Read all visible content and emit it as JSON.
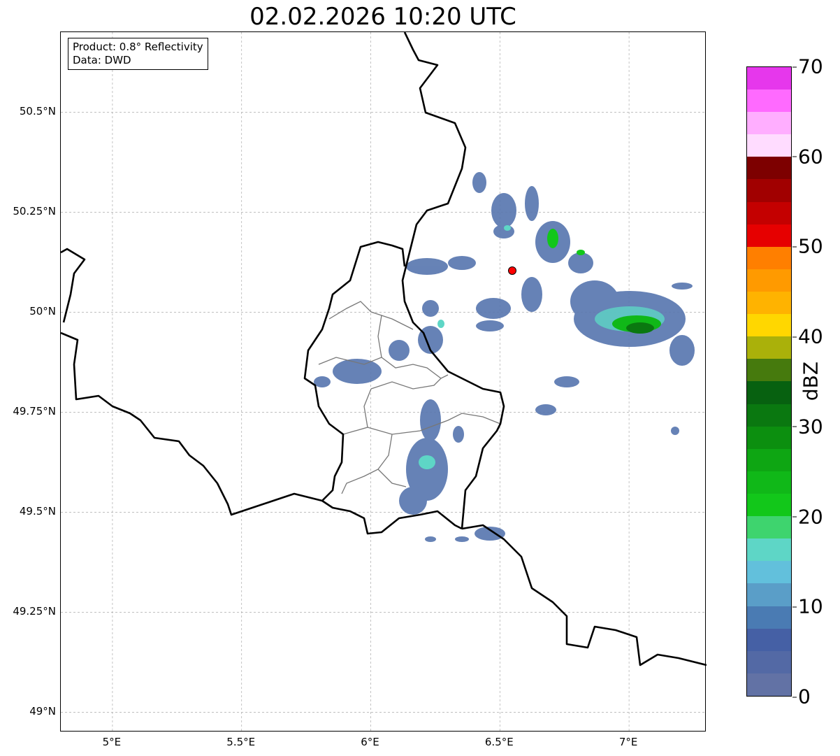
{
  "chart_data": {
    "type": "heatmap",
    "title": "02.02.2026 10:20 UTC",
    "xlim": [
      4.8,
      7.3
    ],
    "ylim": [
      48.95,
      50.7
    ],
    "x_ticks": [
      {
        "v": 5,
        "label": "5°E"
      },
      {
        "v": 5.5,
        "label": "5.5°E"
      },
      {
        "v": 6,
        "label": "6°E"
      },
      {
        "v": 6.5,
        "label": "6.5°E"
      },
      {
        "v": 7,
        "label": "7°E"
      }
    ],
    "y_ticks": [
      {
        "v": 50.5,
        "label": "50.5°N"
      },
      {
        "v": 50.25,
        "label": "50.25°N"
      },
      {
        "v": 50,
        "label": "50°N"
      },
      {
        "v": 49.75,
        "label": "49.75°N"
      },
      {
        "v": 49.5,
        "label": "49.5°N"
      },
      {
        "v": 49.25,
        "label": "49.25°N"
      },
      {
        "v": 49,
        "label": "49°N"
      }
    ],
    "grid": true,
    "info_lines": [
      "Product: 0.8° Reflectivity",
      "Data: DWD"
    ],
    "radar_site": {
      "lon": 6.55,
      "lat": 50.11,
      "color": "#ff0000"
    },
    "colorbar": {
      "label": "dBZ",
      "range": [
        0,
        70
      ],
      "ticks": [
        "0",
        "10",
        "20",
        "30",
        "40",
        "50",
        "60",
        "70"
      ],
      "colors": [
        "#6272a5",
        "#5369a5",
        "#4560a5",
        "#4a7bb3",
        "#5a9ec8",
        "#62c0dc",
        "#5ed6c6",
        "#3ed46e",
        "#12c71a",
        "#10b818",
        "#0ea613",
        "#0c8f0f",
        "#0a7810",
        "#076110",
        "#467a0d",
        "#aab10a",
        "#ffd700",
        "#ffb300",
        "#ff9a00",
        "#ff7f00",
        "#e60000",
        "#c40000",
        "#a10000",
        "#7d0000",
        "#ffdcff",
        "#ffaeff",
        "#ff6aff",
        "#e637ec"
      ]
    }
  }
}
